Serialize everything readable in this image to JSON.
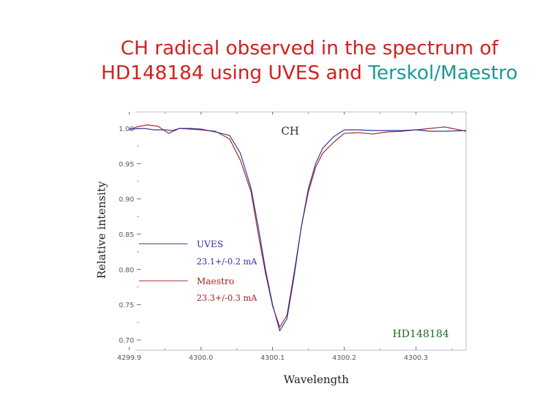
{
  "title": {
    "line1": "CH radical observed in the spectrum of",
    "line2_a": "HD148184 using UVES and ",
    "line2_b": "Terskol/Maestro"
  },
  "colors": {
    "title": "#d41f1f",
    "title_accent": "#1a9a96",
    "uves": "#2b2f9e",
    "maestro": "#a32020",
    "star": "#1f6b1f"
  },
  "chart_data": {
    "type": "line",
    "xlabel": "Wavelength",
    "ylabel": "Relative intensity",
    "xlim": [
      4299.9,
      4300.37
    ],
    "ylim": [
      0.697,
      1.0
    ],
    "xticks": [
      "4299.9",
      "4300.0",
      "4300.1",
      "4300.2",
      "4300.3"
    ],
    "yticks": [
      "1.00",
      "0.95",
      "0.90",
      "0.85",
      "0.80",
      "0.75",
      "0.70"
    ],
    "annotations": {
      "molecule": "CH",
      "star": "HD148184"
    },
    "series": [
      {
        "name": "UVES",
        "measure": "23.1+/-0.2 mA",
        "color": "#2b2f9e",
        "x": [
          4299.9,
          4299.92,
          4299.935,
          4299.95,
          4299.96,
          4299.97,
          4299.985,
          4300.0,
          4300.02,
          4300.04,
          4300.055,
          4300.07,
          4300.08,
          4300.09,
          4300.1,
          4300.11,
          4300.12,
          4300.13,
          4300.14,
          4300.15,
          4300.16,
          4300.17,
          4300.185,
          4300.2,
          4300.22,
          4300.24,
          4300.26,
          4300.28,
          4300.3,
          4300.32,
          4300.34,
          4300.37
        ],
        "y": [
          0.999,
          1.0,
          0.998,
          0.998,
          0.997,
          1.0,
          1.0,
          0.999,
          0.995,
          0.99,
          0.965,
          0.915,
          0.86,
          0.8,
          0.75,
          0.713,
          0.73,
          0.79,
          0.86,
          0.915,
          0.95,
          0.972,
          0.988,
          0.998,
          0.998,
          0.997,
          0.997,
          0.997,
          0.998,
          0.996,
          0.996,
          0.997
        ]
      },
      {
        "name": "Maestro",
        "measure": "23.3+/-0.3 mA",
        "color": "#a32020",
        "x": [
          4299.9,
          4299.91,
          4299.925,
          4299.94,
          4299.955,
          4299.97,
          4299.985,
          4300.0,
          4300.02,
          4300.04,
          4300.055,
          4300.07,
          4300.08,
          4300.09,
          4300.1,
          4300.11,
          4300.12,
          4300.13,
          4300.14,
          4300.15,
          4300.16,
          4300.17,
          4300.185,
          4300.2,
          4300.22,
          4300.24,
          4300.26,
          4300.28,
          4300.3,
          4300.32,
          4300.34,
          4300.37
        ],
        "y": [
          0.998,
          1.002,
          1.005,
          1.003,
          0.993,
          1.0,
          0.999,
          0.998,
          0.996,
          0.985,
          0.955,
          0.91,
          0.85,
          0.795,
          0.748,
          0.718,
          0.735,
          0.795,
          0.86,
          0.91,
          0.945,
          0.965,
          0.98,
          0.993,
          0.994,
          0.992,
          0.995,
          0.996,
          0.998,
          1.0,
          1.002,
          0.996
        ]
      }
    ]
  }
}
